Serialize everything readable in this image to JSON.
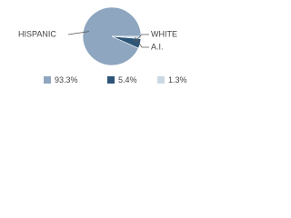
{
  "chart_data": {
    "type": "pie",
    "categories": [
      "HISPANIC",
      "WHITE",
      "A.I."
    ],
    "values": [
      93.3,
      5.4,
      1.3
    ],
    "value_labels": [
      "93.3%",
      "5.4%",
      "1.3%"
    ],
    "colors": [
      "#8ea6bf",
      "#2d5578",
      "#c9d9e5"
    ]
  }
}
